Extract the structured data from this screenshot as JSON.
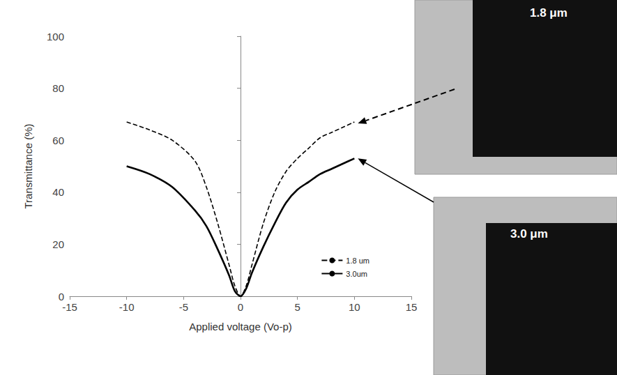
{
  "chart_data": {
    "type": "line",
    "x_label": "Applied voltage (Vo-p)",
    "y_label": "Transmittance (%)",
    "xlim": [
      -15,
      15
    ],
    "xticks": [
      -15,
      -10,
      -5,
      0,
      5,
      10,
      15
    ],
    "ylim": [
      0,
      100
    ],
    "yticks": [
      0,
      20,
      40,
      60,
      80,
      100
    ],
    "grid": false,
    "legend": "lower right",
    "x": [
      -10,
      -8,
      -6,
      -4,
      -3,
      -2,
      -1,
      -0.5,
      0,
      0.5,
      1,
      2,
      3,
      4,
      5,
      6,
      7,
      8,
      9,
      10
    ],
    "series": [
      {
        "name": "1.8 um",
        "color": "#000000",
        "line_style": "dashed",
        "values": [
          67,
          64,
          60,
          52,
          42,
          28,
          12,
          4,
          0,
          4,
          12,
          28,
          40,
          48,
          53,
          57,
          61,
          63,
          65,
          67
        ]
      },
      {
        "name": "3.0um",
        "color": "#000000",
        "line_style": "solid",
        "values": [
          50,
          47,
          42,
          33,
          27,
          18,
          8,
          2,
          0,
          3,
          9,
          19,
          28,
          36,
          41,
          44,
          47,
          49,
          51,
          53
        ]
      }
    ],
    "annotations": [
      "1.8 μm",
      "3.0 μm"
    ]
  }
}
